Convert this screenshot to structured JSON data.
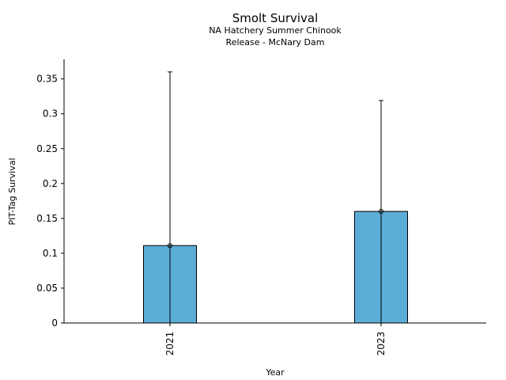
{
  "chart_data": {
    "type": "bar",
    "title": "Smolt Survival",
    "subtitle_lines": [
      "NA Hatchery Summer Chinook",
      "Release - McNary Dam"
    ],
    "xlabel": "Year",
    "ylabel": "PIT-Tag Survival",
    "categories": [
      "2021",
      "2023"
    ],
    "values": [
      0.111,
      0.16
    ],
    "error_bars": [
      {
        "low": 0.0,
        "high": 0.36
      },
      {
        "low": 0.0,
        "high": 0.319
      }
    ],
    "ylim": [
      0,
      0.378
    ],
    "yticks": [
      0,
      0.05,
      0.1,
      0.15,
      0.2,
      0.25,
      0.3,
      0.35
    ],
    "ytick_labels": [
      "0",
      "0.05",
      "0.1",
      "0.15",
      "0.2",
      "0.25",
      "0.3",
      "0.35"
    ],
    "bar_color": "#5badd6",
    "grid": false,
    "legend": "none"
  }
}
